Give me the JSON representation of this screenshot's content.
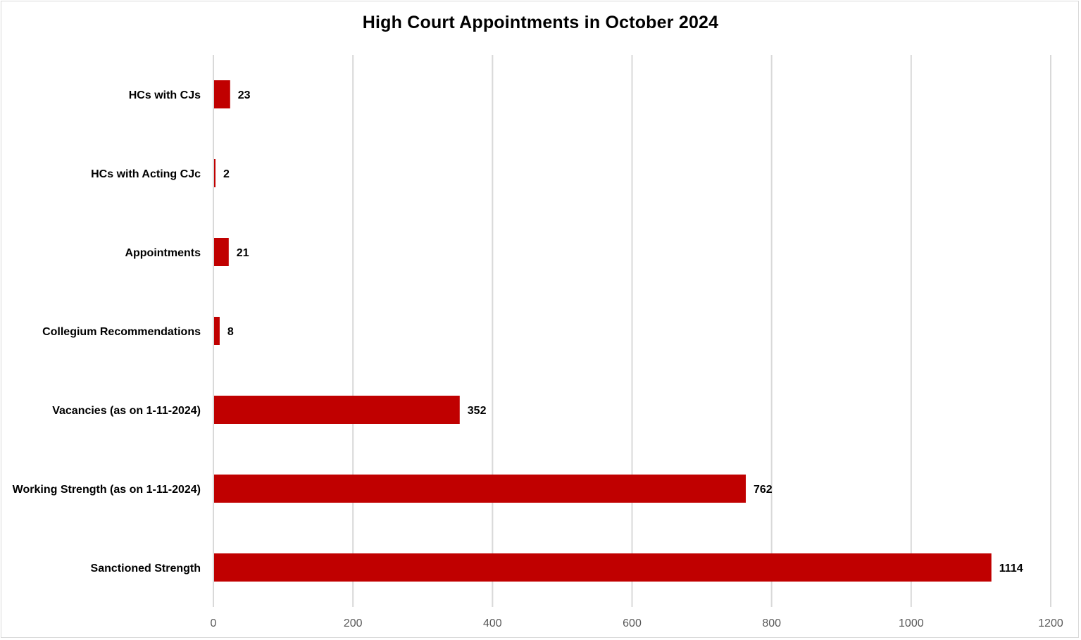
{
  "chart_data": {
    "type": "bar",
    "orientation": "horizontal",
    "title": "High Court Appointments in October 2024",
    "xlabel": "",
    "ylabel": "",
    "categories": [
      "HCs with CJs",
      "HCs with Acting CJc",
      "Appointments",
      "Collegium Recommendations",
      "Vacancies (as on 1-11-2024)",
      "Working Strength (as on 1-11-2024)",
      "Sanctioned Strength"
    ],
    "values": [
      23,
      2,
      21,
      8,
      352,
      762,
      1114
    ],
    "xlim": [
      0,
      1200
    ],
    "xticks": [
      "0",
      "200",
      "400",
      "600",
      "800",
      "1000",
      "1200"
    ],
    "grid": "vertical",
    "legend": "none",
    "bar_color": "#c00000",
    "grid_color": "#d9d9d9",
    "data_labels": true
  }
}
